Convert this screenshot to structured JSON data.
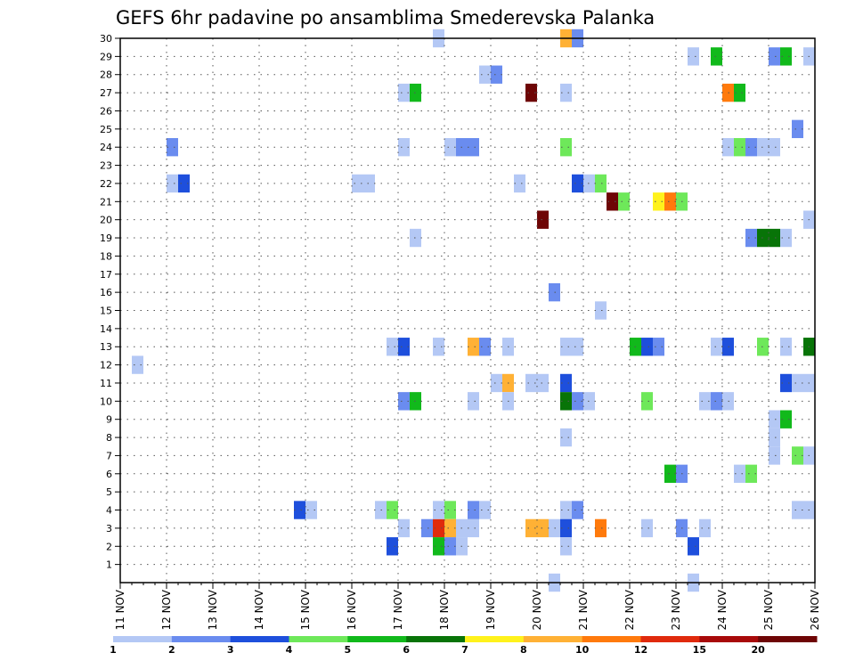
{
  "chart_data": {
    "type": "heatmap",
    "title": "GEFS 6hr padavine po ansamblima Smederevska Palanka",
    "xlabel": "",
    "ylabel": "",
    "x_range": [
      "2024-11-11",
      "2024-11-26"
    ],
    "y_range": [
      0,
      30
    ],
    "x_tick_labels": [
      "11 NOV",
      "12 NOV",
      "13 NOV",
      "14 NOV",
      "15 NOV",
      "16 NOV",
      "17 NOV",
      "18 NOV",
      "19 NOV",
      "20 NOV",
      "21 NOV",
      "22 NOV",
      "23 NOV",
      "24 NOV",
      "25 NOV",
      "26 NOV"
    ],
    "y_tick_labels": [
      "1",
      "2",
      "3",
      "4",
      "5",
      "6",
      "7",
      "8",
      "9",
      "10",
      "11",
      "12",
      "13",
      "14",
      "15",
      "16",
      "17",
      "18",
      "19",
      "20",
      "21",
      "22",
      "23",
      "24",
      "25",
      "26",
      "27",
      "28",
      "29",
      "30"
    ],
    "grid": true,
    "colorbar": {
      "placement": "bottom",
      "colors": [
        "#b4c8f5",
        "#6a8cef",
        "#1e4fdc",
        "#6ee85a",
        "#11b91b",
        "#087408",
        "#fff21c",
        "#ffb135",
        "#ff7a0c",
        "#e02a0c",
        "#a80a0a",
        "#6e0505"
      ],
      "labels": [
        "1",
        "2",
        "3",
        "4",
        "5",
        "6",
        "7",
        "8",
        "10",
        "12",
        "15",
        "20"
      ]
    },
    "cells": [
      {
        "t": 0.25,
        "m": 12,
        "v": 1
      },
      {
        "t": 1.0,
        "m": 24,
        "v": 2
      },
      {
        "t": 1.0,
        "m": 22,
        "v": 1
      },
      {
        "t": 1.25,
        "m": 22,
        "v": 3
      },
      {
        "t": 3.75,
        "m": 4,
        "v": 3
      },
      {
        "t": 4.0,
        "m": 4,
        "v": 1
      },
      {
        "t": 5.0,
        "m": 22,
        "v": 1
      },
      {
        "t": 5.25,
        "m": 22,
        "v": 1
      },
      {
        "t": 5.5,
        "m": 4,
        "v": 1
      },
      {
        "t": 5.75,
        "m": 4,
        "v": 4
      },
      {
        "t": 5.75,
        "m": 13,
        "v": 1
      },
      {
        "t": 5.75,
        "m": 2,
        "v": 3
      },
      {
        "t": 6.0,
        "m": 27,
        "v": 1
      },
      {
        "t": 6.25,
        "m": 27,
        "v": 5
      },
      {
        "t": 6.0,
        "m": 24,
        "v": 1
      },
      {
        "t": 6.0,
        "m": 13,
        "v": 3
      },
      {
        "t": 6.0,
        "m": 10,
        "v": 2
      },
      {
        "t": 6.25,
        "m": 10,
        "v": 5
      },
      {
        "t": 6.0,
        "m": 3,
        "v": 1
      },
      {
        "t": 6.25,
        "m": 19,
        "v": 1
      },
      {
        "t": 6.75,
        "m": 30,
        "v": 1
      },
      {
        "t": 6.75,
        "m": 13,
        "v": 1
      },
      {
        "t": 6.5,
        "m": 3,
        "v": 2
      },
      {
        "t": 6.75,
        "m": 3,
        "v": 12
      },
      {
        "t": 6.75,
        "m": 2,
        "v": 5
      },
      {
        "t": 6.75,
        "m": 4,
        "v": 1
      },
      {
        "t": 7.0,
        "m": 4,
        "v": 4
      },
      {
        "t": 7.0,
        "m": 3,
        "v": 8
      },
      {
        "t": 7.0,
        "m": 2,
        "v": 2
      },
      {
        "t": 7.25,
        "m": 2,
        "v": 1
      },
      {
        "t": 7.25,
        "m": 3,
        "v": 1
      },
      {
        "t": 7.5,
        "m": 3,
        "v": 1
      },
      {
        "t": 7.0,
        "m": 24,
        "v": 1
      },
      {
        "t": 7.25,
        "m": 24,
        "v": 2
      },
      {
        "t": 7.5,
        "m": 24,
        "v": 2
      },
      {
        "t": 7.5,
        "m": 13,
        "v": 8
      },
      {
        "t": 7.75,
        "m": 13,
        "v": 2
      },
      {
        "t": 7.5,
        "m": 10,
        "v": 1
      },
      {
        "t": 7.5,
        "m": 4,
        "v": 2
      },
      {
        "t": 7.75,
        "m": 4,
        "v": 1
      },
      {
        "t": 7.75,
        "m": 28,
        "v": 1
      },
      {
        "t": 8.0,
        "m": 28,
        "v": 2
      },
      {
        "t": 8.0,
        "m": 11,
        "v": 1
      },
      {
        "t": 8.25,
        "m": 11,
        "v": 8
      },
      {
        "t": 8.25,
        "m": 13,
        "v": 1
      },
      {
        "t": 8.25,
        "m": 10,
        "v": 1
      },
      {
        "t": 8.5,
        "m": 22,
        "v": 1
      },
      {
        "t": 8.75,
        "m": 27,
        "v": 20
      },
      {
        "t": 9.0,
        "m": 20,
        "v": 20
      },
      {
        "t": 8.75,
        "m": 11,
        "v": 1
      },
      {
        "t": 9.0,
        "m": 11,
        "v": 1
      },
      {
        "t": 8.75,
        "m": 3,
        "v": 8
      },
      {
        "t": 9.0,
        "m": 3,
        "v": 8
      },
      {
        "t": 9.25,
        "m": 3,
        "v": 1
      },
      {
        "t": 9.25,
        "m": 0,
        "v": 1
      },
      {
        "t": 9.5,
        "m": 30,
        "v": 8
      },
      {
        "t": 9.75,
        "m": 30,
        "v": 2
      },
      {
        "t": 9.5,
        "m": 27,
        "v": 1
      },
      {
        "t": 9.5,
        "m": 24,
        "v": 4
      },
      {
        "t": 9.5,
        "m": 13,
        "v": 1
      },
      {
        "t": 9.75,
        "m": 13,
        "v": 1
      },
      {
        "t": 9.5,
        "m": 11,
        "v": 3
      },
      {
        "t": 9.5,
        "m": 10,
        "v": 6
      },
      {
        "t": 9.75,
        "m": 10,
        "v": 2
      },
      {
        "t": 10.0,
        "m": 10,
        "v": 1
      },
      {
        "t": 9.5,
        "m": 8,
        "v": 1
      },
      {
        "t": 9.5,
        "m": 4,
        "v": 1
      },
      {
        "t": 9.75,
        "m": 4,
        "v": 2
      },
      {
        "t": 9.5,
        "m": 3,
        "v": 3
      },
      {
        "t": 9.5,
        "m": 2,
        "v": 1
      },
      {
        "t": 9.25,
        "m": 16,
        "v": 2
      },
      {
        "t": 9.75,
        "m": 22,
        "v": 3
      },
      {
        "t": 10.0,
        "m": 22,
        "v": 1
      },
      {
        "t": 10.25,
        "m": 22,
        "v": 4
      },
      {
        "t": 10.5,
        "m": 21,
        "v": 20
      },
      {
        "t": 10.75,
        "m": 21,
        "v": 4
      },
      {
        "t": 10.25,
        "m": 15,
        "v": 1
      },
      {
        "t": 10.25,
        "m": 3,
        "v": 10
      },
      {
        "t": 11.0,
        "m": 13,
        "v": 5
      },
      {
        "t": 11.25,
        "m": 13,
        "v": 3
      },
      {
        "t": 11.5,
        "m": 13,
        "v": 2
      },
      {
        "t": 11.25,
        "m": 10,
        "v": 4
      },
      {
        "t": 11.25,
        "m": 3,
        "v": 1
      },
      {
        "t": 11.5,
        "m": 21,
        "v": 7
      },
      {
        "t": 11.75,
        "m": 21,
        "v": 10
      },
      {
        "t": 12.0,
        "m": 21,
        "v": 4
      },
      {
        "t": 11.75,
        "m": 6,
        "v": 5
      },
      {
        "t": 12.0,
        "m": 6,
        "v": 2
      },
      {
        "t": 12.0,
        "m": 3,
        "v": 2
      },
      {
        "t": 12.25,
        "m": 2,
        "v": 3
      },
      {
        "t": 12.25,
        "m": 29,
        "v": 1
      },
      {
        "t": 12.25,
        "m": 0,
        "v": 1
      },
      {
        "t": 12.5,
        "m": 10,
        "v": 1
      },
      {
        "t": 12.75,
        "m": 10,
        "v": 2
      },
      {
        "t": 13.0,
        "m": 10,
        "v": 1
      },
      {
        "t": 12.5,
        "m": 3,
        "v": 1
      },
      {
        "t": 12.75,
        "m": 29,
        "v": 5
      },
      {
        "t": 12.75,
        "m": 13,
        "v": 1
      },
      {
        "t": 13.0,
        "m": 13,
        "v": 3
      },
      {
        "t": 13.0,
        "m": 27,
        "v": 10
      },
      {
        "t": 13.25,
        "m": 27,
        "v": 5
      },
      {
        "t": 13.0,
        "m": 24,
        "v": 1
      },
      {
        "t": 13.25,
        "m": 24,
        "v": 4
      },
      {
        "t": 13.5,
        "m": 24,
        "v": 2
      },
      {
        "t": 13.75,
        "m": 24,
        "v": 1
      },
      {
        "t": 14.0,
        "m": 24,
        "v": 1
      },
      {
        "t": 13.25,
        "m": 6,
        "v": 1
      },
      {
        "t": 13.5,
        "m": 6,
        "v": 4
      },
      {
        "t": 13.5,
        "m": 19,
        "v": 2
      },
      {
        "t": 13.75,
        "m": 19,
        "v": 6
      },
      {
        "t": 14.0,
        "m": 19,
        "v": 6
      },
      {
        "t": 14.25,
        "m": 19,
        "v": 1
      },
      {
        "t": 13.75,
        "m": 13,
        "v": 4
      },
      {
        "t": 14.25,
        "m": 13,
        "v": 1
      },
      {
        "t": 14.0,
        "m": 29,
        "v": 2
      },
      {
        "t": 14.25,
        "m": 29,
        "v": 5
      },
      {
        "t": 14.0,
        "m": 9,
        "v": 1
      },
      {
        "t": 14.0,
        "m": 8,
        "v": 1
      },
      {
        "t": 14.0,
        "m": 7,
        "v": 1
      },
      {
        "t": 14.25,
        "m": 9,
        "v": 5
      },
      {
        "t": 14.25,
        "m": 11,
        "v": 3
      },
      {
        "t": 14.5,
        "m": 11,
        "v": 1
      },
      {
        "t": 14.75,
        "m": 11,
        "v": 1
      },
      {
        "t": 14.5,
        "m": 7,
        "v": 4
      },
      {
        "t": 14.75,
        "m": 7,
        "v": 1
      },
      {
        "t": 14.5,
        "m": 25,
        "v": 2
      },
      {
        "t": 14.75,
        "m": 29,
        "v": 1
      },
      {
        "t": 14.75,
        "m": 20,
        "v": 1
      },
      {
        "t": 14.75,
        "m": 13,
        "v": 6
      },
      {
        "t": 14.5,
        "m": 4,
        "v": 1
      },
      {
        "t": 14.75,
        "m": 4,
        "v": 1
      }
    ]
  }
}
